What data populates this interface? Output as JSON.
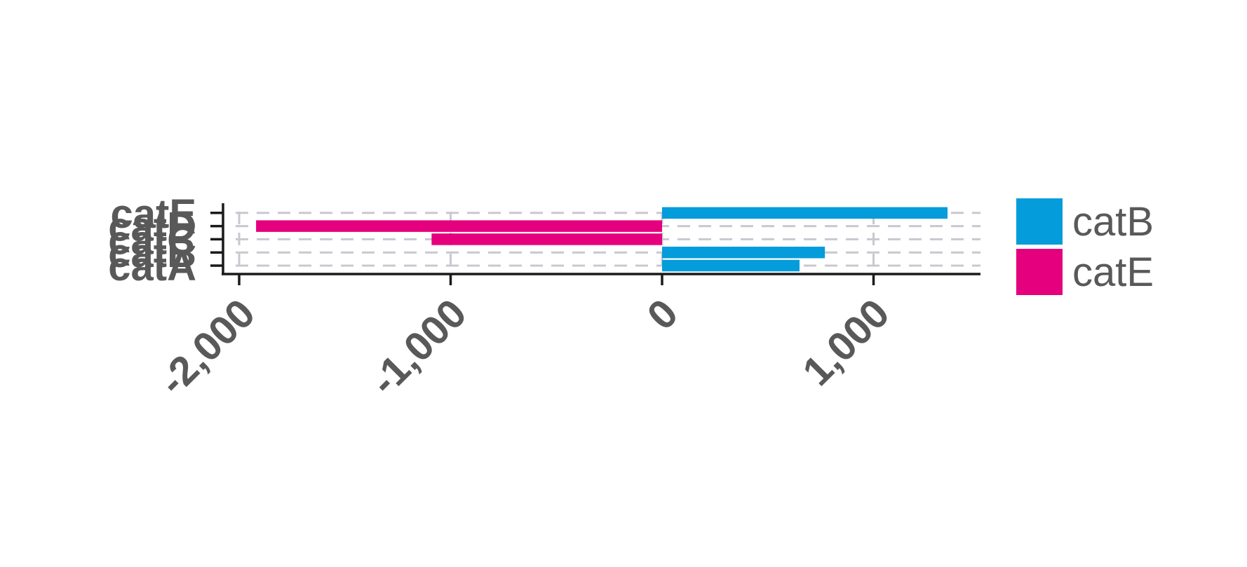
{
  "chart_data": {
    "type": "bar",
    "orientation": "horizontal",
    "layout": "diverging",
    "title": "",
    "xlabel": "",
    "ylabel": "",
    "categories": [
      "catA",
      "catB",
      "catC",
      "catD",
      "catE"
    ],
    "series": [
      {
        "name": "catB",
        "color": "#049cdb",
        "values": [
          650,
          770,
          0,
          0,
          1350
        ]
      },
      {
        "name": "catE",
        "color": "#e5007d",
        "values": [
          0,
          0,
          -1090,
          -1920,
          0
        ]
      }
    ],
    "xlim": [
      -2080,
      1500
    ],
    "xticks": [
      -2000,
      -1000,
      0,
      1000
    ],
    "xtick_labels": [
      "-2,000",
      "-1,000",
      "0",
      "1,000"
    ],
    "grid": true,
    "grid_style": "dashed",
    "grid_color": "#c8c9d0",
    "axis_color": "#1a1a1a",
    "text_color": "#595959",
    "legend": {
      "position": "right",
      "entries": [
        "catB",
        "catE"
      ]
    }
  }
}
